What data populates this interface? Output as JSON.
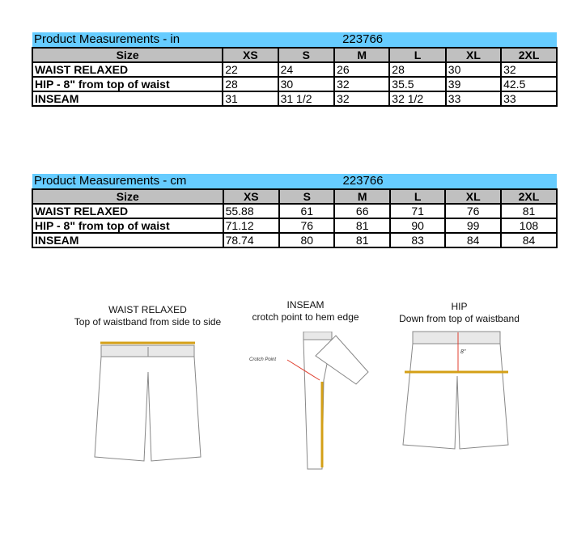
{
  "sizes": [
    "XS",
    "S",
    "M",
    "L",
    "XL",
    "2XL"
  ],
  "inches": {
    "title": "Product Measurements -  in",
    "style": "223766",
    "size_header": "Size",
    "rows": [
      {
        "label": "WAIST RELAXED",
        "values": [
          "22",
          "24",
          "26",
          "28",
          "30",
          "32"
        ]
      },
      {
        "label": "HIP - 8\" from top of waist",
        "values": [
          "28",
          "30",
          "32",
          "35.5",
          "39",
          "42.5"
        ]
      },
      {
        "label": "INSEAM",
        "values": [
          "31",
          "31 1/2",
          "32",
          "32 1/2",
          "33",
          "33"
        ]
      }
    ]
  },
  "cm": {
    "title": "Product Measurements -  cm",
    "style": "223766",
    "size_header": "Size",
    "rows": [
      {
        "label": "WAIST RELAXED",
        "values": [
          "55.88",
          "61",
          "66",
          "71",
          "76",
          "81"
        ]
      },
      {
        "label": "HIP - 8\" from top of waist",
        "values": [
          "71.12",
          "76",
          "81",
          "90",
          "99",
          "108"
        ]
      },
      {
        "label": "INSEAM",
        "values": [
          "78.74",
          "80",
          "81",
          "83",
          "84",
          "84"
        ]
      }
    ]
  },
  "diagrams": {
    "waist": {
      "title": "WAIST RELAXED",
      "desc": "Top of waistband from side to side"
    },
    "inseam": {
      "title": "INSEAM",
      "desc": "crotch point to hem edge",
      "callout": "Crotch Point"
    },
    "hip": {
      "title": "HIP",
      "desc": "Down from top of waistband",
      "mark": "8\""
    }
  },
  "colors": {
    "title_bar": "#66ccff",
    "header": "#c0c0c0",
    "measure_line": "#d4a017",
    "arrow": "#e04030"
  }
}
